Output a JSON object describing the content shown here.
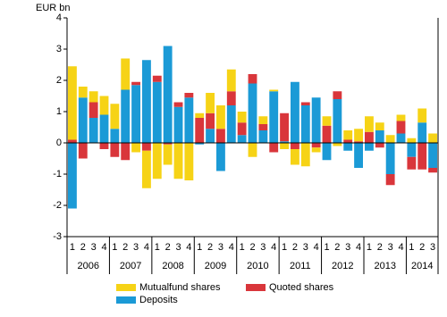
{
  "chart_data": {
    "type": "stacked_bar",
    "y_label": "EUR bn",
    "categories": [
      "1",
      "2",
      "3",
      "4",
      "1",
      "2",
      "3",
      "4",
      "1",
      "2",
      "3",
      "4",
      "1",
      "2",
      "3",
      "4",
      "1",
      "2",
      "3",
      "4",
      "1",
      "2",
      "3",
      "4",
      "1",
      "2",
      "3",
      "4",
      "1",
      "2",
      "3",
      "4",
      "1",
      "2",
      "3"
    ],
    "groups": [
      "2006",
      "2007",
      "2008",
      "2009",
      "2010",
      "2011",
      "2012",
      "2013",
      "2014"
    ],
    "series": [
      {
        "name": "Deposits",
        "color": "#1b9ad6",
        "values": [
          -2.1,
          1.45,
          0.8,
          0.9,
          0.45,
          1.7,
          1.85,
          2.65,
          1.95,
          3.1,
          1.15,
          1.45,
          -0.05,
          0.45,
          -0.9,
          1.2,
          0.25,
          1.9,
          0.4,
          1.65,
          0.05,
          1.95,
          1.2,
          1.45,
          -0.55,
          1.4,
          -0.25,
          -0.8,
          -0.25,
          0.4,
          -1.0,
          0.3,
          -0.45,
          0.65,
          -0.8
        ]
      },
      {
        "name": "Quoted shares",
        "color": "#d9363b",
        "values": [
          0.1,
          -0.5,
          0.5,
          -0.2,
          -0.45,
          -0.55,
          0.1,
          -0.25,
          0.2,
          -0.05,
          0.15,
          0.15,
          0.8,
          0.5,
          0.45,
          0.45,
          0.4,
          0.3,
          0.2,
          -0.3,
          0.9,
          -0.2,
          0.1,
          -0.15,
          0.55,
          0.25,
          0.1,
          0.05,
          0.35,
          -0.15,
          -0.35,
          0.4,
          -0.4,
          -0.85,
          -0.15
        ]
      },
      {
        "name": "Mutualfund shares",
        "color": "#f6d316",
        "values": [
          2.35,
          0.35,
          0.35,
          0.6,
          0.8,
          1.0,
          -0.3,
          -1.2,
          -1.15,
          -0.65,
          -1.15,
          -1.2,
          0.15,
          0.65,
          0.75,
          0.7,
          0.35,
          -0.45,
          0.25,
          0.05,
          -0.2,
          -0.5,
          -0.75,
          -0.15,
          0.3,
          -0.1,
          0.3,
          0.4,
          0.5,
          0.25,
          0.25,
          0.2,
          0.15,
          0.45,
          0.3
        ]
      }
    ],
    "ylim": [
      -3,
      4
    ],
    "yticks": [
      -3,
      -2,
      -1,
      0,
      1,
      2,
      3,
      4
    ]
  }
}
